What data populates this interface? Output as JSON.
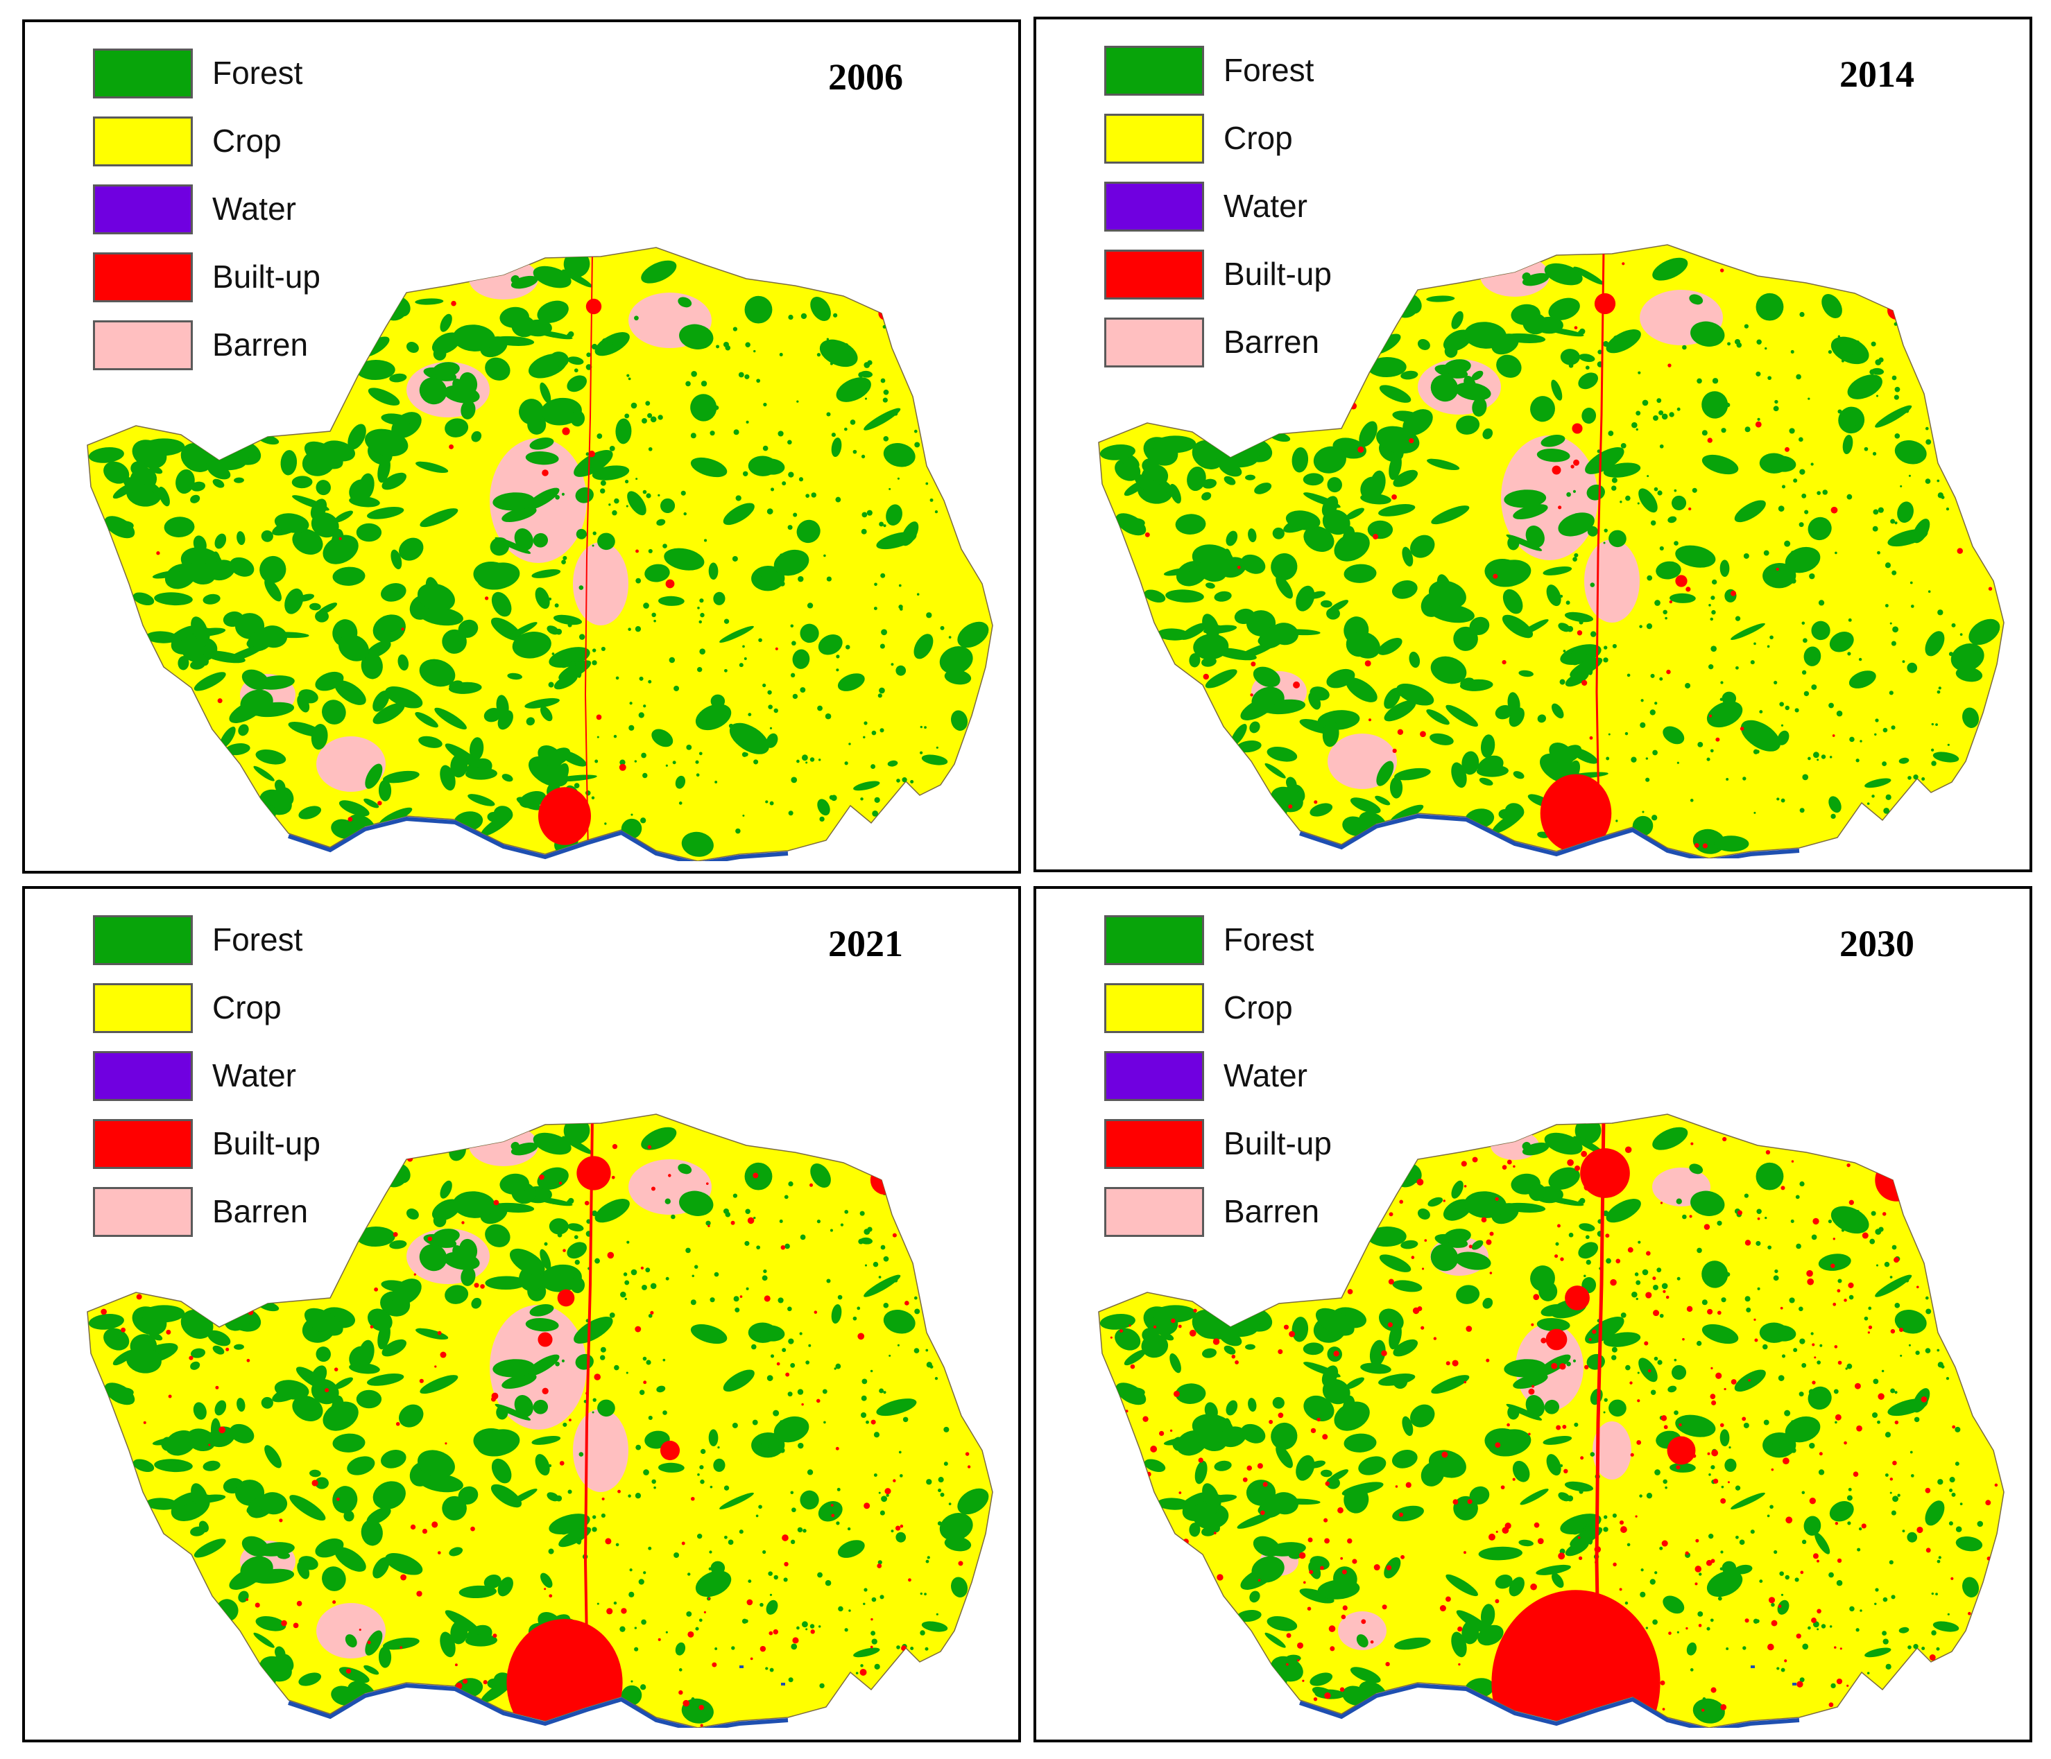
{
  "legend": [
    {
      "label": "Forest",
      "color": "#08A40A"
    },
    {
      "label": "Crop",
      "color": "#FFFF00"
    },
    {
      "label": "Water",
      "color": "#7000E0"
    },
    {
      "label": "Built-up",
      "color": "#FF0000"
    },
    {
      "label": "Barren",
      "color": "#FFBFC0"
    }
  ],
  "panels": [
    {
      "year": "2006"
    },
    {
      "year": "2014"
    },
    {
      "year": "2021"
    },
    {
      "year": "2030"
    }
  ],
  "colors": {
    "forest": "#08A40A",
    "crop": "#FFFF00",
    "water_legend": "#7000E0",
    "river": "#1E4FB0",
    "builtup": "#FF0000",
    "barren": "#FFBFC0"
  }
}
